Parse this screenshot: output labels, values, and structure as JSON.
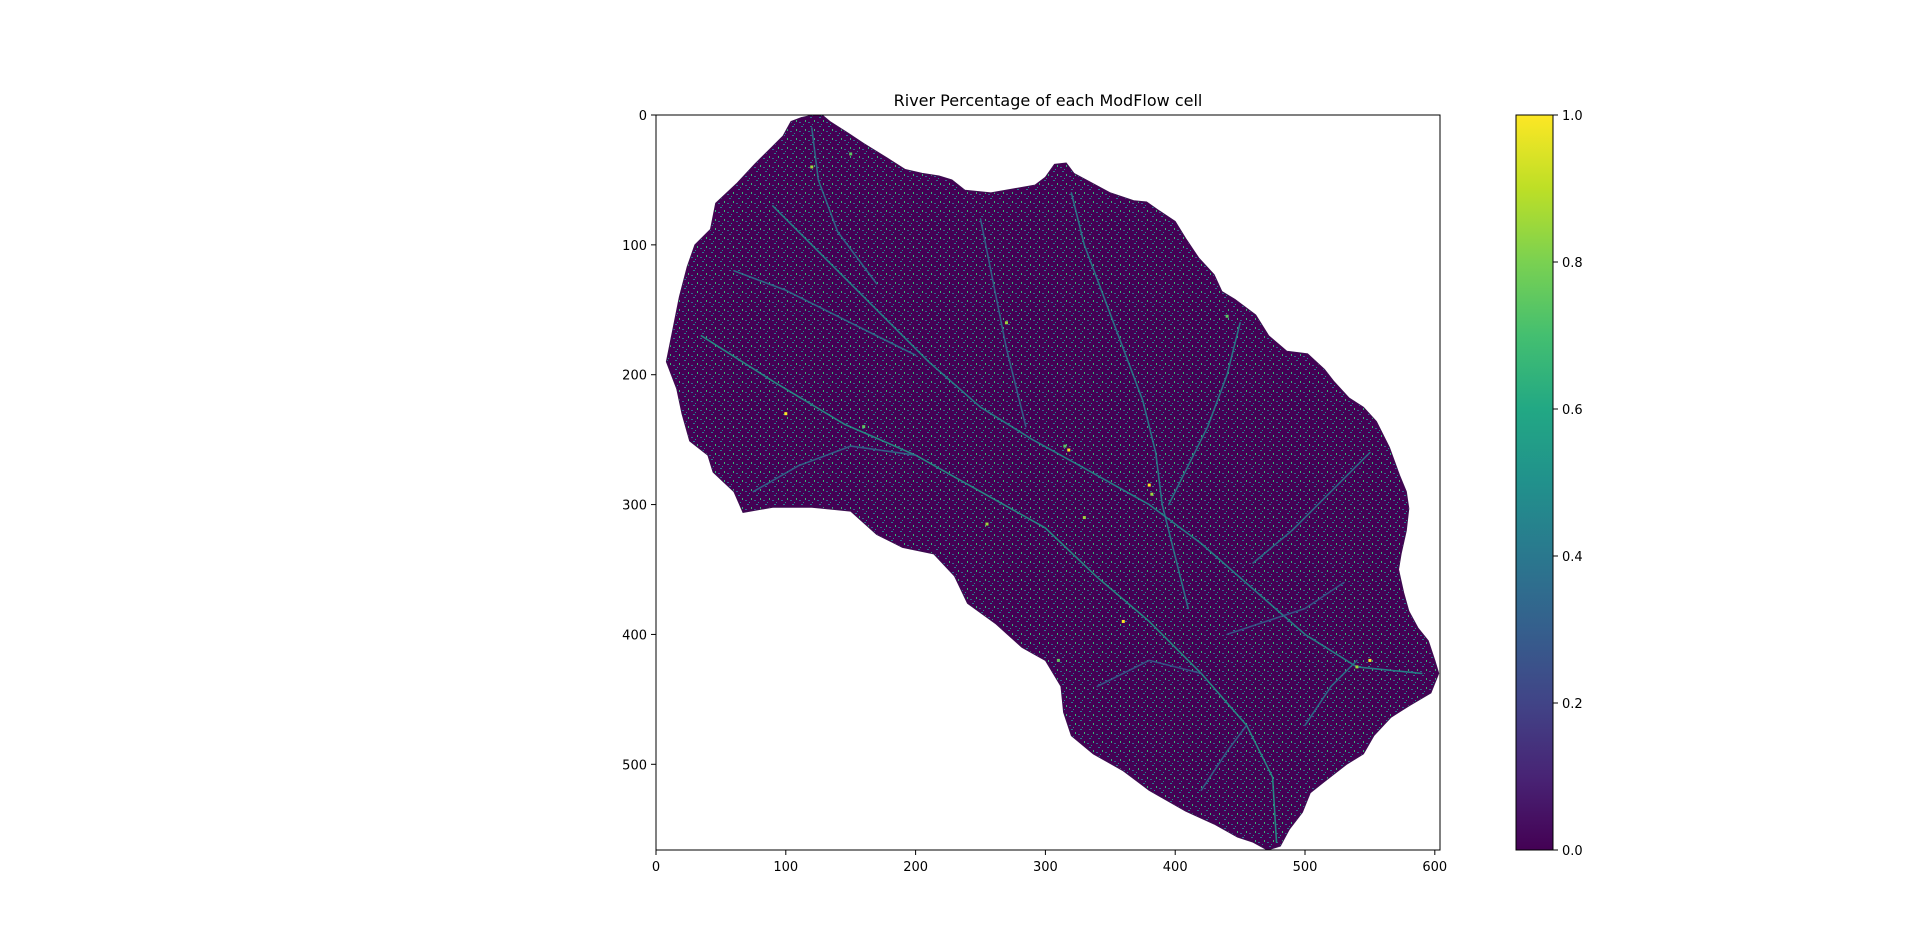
{
  "chart_data": {
    "type": "heatmap",
    "title": "River Percentage of each ModFlow cell",
    "xlabel": "",
    "ylabel": "",
    "colormap": "viridis",
    "xlim": [
      0,
      604
    ],
    "ylim": [
      566,
      0
    ],
    "x_ticks": [
      0,
      100,
      200,
      300,
      400,
      500,
      600
    ],
    "y_ticks": [
      0,
      100,
      200,
      300,
      400,
      500
    ],
    "colorbar": {
      "range": [
        0.0,
        1.0
      ],
      "ticks": [
        "0.0",
        "0.2",
        "0.4",
        "0.6",
        "0.8",
        "1.0"
      ]
    },
    "domain_outline": [
      [
        121,
        0
      ],
      [
        128,
        0
      ],
      [
        134,
        5
      ],
      [
        148,
        14
      ],
      [
        160,
        22
      ],
      [
        178,
        33
      ],
      [
        192,
        42
      ],
      [
        205,
        45
      ],
      [
        218,
        47
      ],
      [
        228,
        50
      ],
      [
        238,
        58
      ],
      [
        258,
        60
      ],
      [
        275,
        57
      ],
      [
        292,
        54
      ],
      [
        300,
        48
      ],
      [
        307,
        38
      ],
      [
        316,
        37
      ],
      [
        322,
        45
      ],
      [
        335,
        52
      ],
      [
        350,
        60
      ],
      [
        368,
        66
      ],
      [
        378,
        67
      ],
      [
        388,
        74
      ],
      [
        400,
        82
      ],
      [
        408,
        95
      ],
      [
        418,
        110
      ],
      [
        430,
        123
      ],
      [
        436,
        136
      ],
      [
        446,
        142
      ],
      [
        462,
        154
      ],
      [
        472,
        170
      ],
      [
        486,
        182
      ],
      [
        502,
        184
      ],
      [
        515,
        196
      ],
      [
        522,
        205
      ],
      [
        534,
        218
      ],
      [
        545,
        225
      ],
      [
        555,
        236
      ],
      [
        565,
        256
      ],
      [
        573,
        278
      ],
      [
        578,
        290
      ],
      [
        580,
        303
      ],
      [
        578,
        320
      ],
      [
        574,
        338
      ],
      [
        572,
        350
      ],
      [
        576,
        368
      ],
      [
        580,
        382
      ],
      [
        587,
        395
      ],
      [
        595,
        405
      ],
      [
        600,
        420
      ],
      [
        603,
        430
      ],
      [
        597,
        445
      ],
      [
        580,
        455
      ],
      [
        566,
        464
      ],
      [
        553,
        478
      ],
      [
        545,
        492
      ],
      [
        532,
        500
      ],
      [
        514,
        514
      ],
      [
        504,
        522
      ],
      [
        498,
        537
      ],
      [
        488,
        550
      ],
      [
        481,
        563
      ],
      [
        471,
        566
      ],
      [
        460,
        560
      ],
      [
        448,
        556
      ],
      [
        430,
        546
      ],
      [
        408,
        536
      ],
      [
        380,
        520
      ],
      [
        360,
        505
      ],
      [
        337,
        492
      ],
      [
        320,
        478
      ],
      [
        314,
        460
      ],
      [
        312,
        440
      ],
      [
        300,
        420
      ],
      [
        282,
        410
      ],
      [
        262,
        392
      ],
      [
        240,
        376
      ],
      [
        230,
        355
      ],
      [
        214,
        338
      ],
      [
        190,
        333
      ],
      [
        170,
        323
      ],
      [
        150,
        305
      ],
      [
        120,
        302
      ],
      [
        90,
        302
      ],
      [
        67,
        306
      ],
      [
        60,
        290
      ],
      [
        44,
        275
      ],
      [
        40,
        262
      ],
      [
        26,
        251
      ],
      [
        20,
        230
      ],
      [
        16,
        211
      ],
      [
        8,
        190
      ],
      [
        12,
        170
      ],
      [
        18,
        140
      ],
      [
        24,
        117
      ],
      [
        30,
        100
      ],
      [
        42,
        88
      ],
      [
        46,
        68
      ],
      [
        62,
        53
      ],
      [
        76,
        38
      ],
      [
        88,
        26
      ],
      [
        98,
        16
      ],
      [
        104,
        5
      ],
      [
        112,
        2
      ]
    ],
    "river_channels": [
      {
        "value": 0.55,
        "points": [
          [
            35,
            170
          ],
          [
            90,
            205
          ],
          [
            145,
            238
          ],
          [
            200,
            262
          ],
          [
            250,
            290
          ],
          [
            300,
            318
          ],
          [
            340,
            356
          ],
          [
            380,
            390
          ],
          [
            420,
            430
          ],
          [
            455,
            470
          ],
          [
            475,
            510
          ],
          [
            478,
            560
          ]
        ]
      },
      {
        "value": 0.5,
        "points": [
          [
            90,
            70
          ],
          [
            130,
            110
          ],
          [
            170,
            150
          ],
          [
            210,
            190
          ],
          [
            250,
            225
          ],
          [
            290,
            250
          ],
          [
            330,
            272
          ],
          [
            380,
            300
          ],
          [
            420,
            330
          ],
          [
            460,
            365
          ],
          [
            500,
            400
          ],
          [
            540,
            425
          ],
          [
            590,
            430
          ]
        ]
      },
      {
        "value": 0.45,
        "points": [
          [
            320,
            60
          ],
          [
            330,
            100
          ],
          [
            345,
            140
          ],
          [
            360,
            180
          ],
          [
            375,
            220
          ],
          [
            385,
            260
          ],
          [
            390,
            300
          ],
          [
            400,
            340
          ],
          [
            410,
            380
          ]
        ]
      },
      {
        "value": 0.45,
        "points": [
          [
            450,
            160
          ],
          [
            440,
            200
          ],
          [
            425,
            240
          ],
          [
            405,
            280
          ],
          [
            395,
            300
          ]
        ]
      },
      {
        "value": 0.4,
        "points": [
          [
            60,
            120
          ],
          [
            100,
            135
          ],
          [
            150,
            160
          ],
          [
            200,
            185
          ]
        ]
      },
      {
        "value": 0.4,
        "points": [
          [
            120,
            10
          ],
          [
            125,
            50
          ],
          [
            140,
            90
          ],
          [
            170,
            130
          ]
        ]
      },
      {
        "value": 0.4,
        "points": [
          [
            550,
            260
          ],
          [
            520,
            290
          ],
          [
            490,
            320
          ],
          [
            460,
            345
          ]
        ]
      },
      {
        "value": 0.4,
        "points": [
          [
            500,
            470
          ],
          [
            520,
            440
          ],
          [
            540,
            420
          ]
        ]
      },
      {
        "value": 0.35,
        "points": [
          [
            75,
            290
          ],
          [
            110,
            270
          ],
          [
            150,
            255
          ],
          [
            200,
            262
          ]
        ]
      },
      {
        "value": 0.35,
        "points": [
          [
            250,
            80
          ],
          [
            260,
            130
          ],
          [
            270,
            180
          ],
          [
            285,
            240
          ]
        ]
      },
      {
        "value": 0.35,
        "points": [
          [
            420,
            520
          ],
          [
            440,
            490
          ],
          [
            455,
            470
          ]
        ]
      },
      {
        "value": 0.3,
        "points": [
          [
            340,
            440
          ],
          [
            380,
            420
          ],
          [
            420,
            430
          ]
        ]
      },
      {
        "value": 0.3,
        "points": [
          [
            530,
            360
          ],
          [
            500,
            380
          ],
          [
            470,
            390
          ],
          [
            440,
            400
          ]
        ]
      }
    ],
    "bright_cells": [
      [
        380,
        285
      ],
      [
        382,
        292
      ],
      [
        315,
        255
      ],
      [
        318,
        258
      ],
      [
        255,
        315
      ],
      [
        160,
        240
      ],
      [
        100,
        230
      ],
      [
        270,
        160
      ],
      [
        440,
        155
      ],
      [
        480,
        170
      ],
      [
        330,
        310
      ],
      [
        310,
        420
      ],
      [
        550,
        420
      ],
      [
        540,
        425
      ],
      [
        455,
        560
      ],
      [
        360,
        390
      ],
      [
        120,
        40
      ],
      [
        150,
        30
      ]
    ]
  }
}
